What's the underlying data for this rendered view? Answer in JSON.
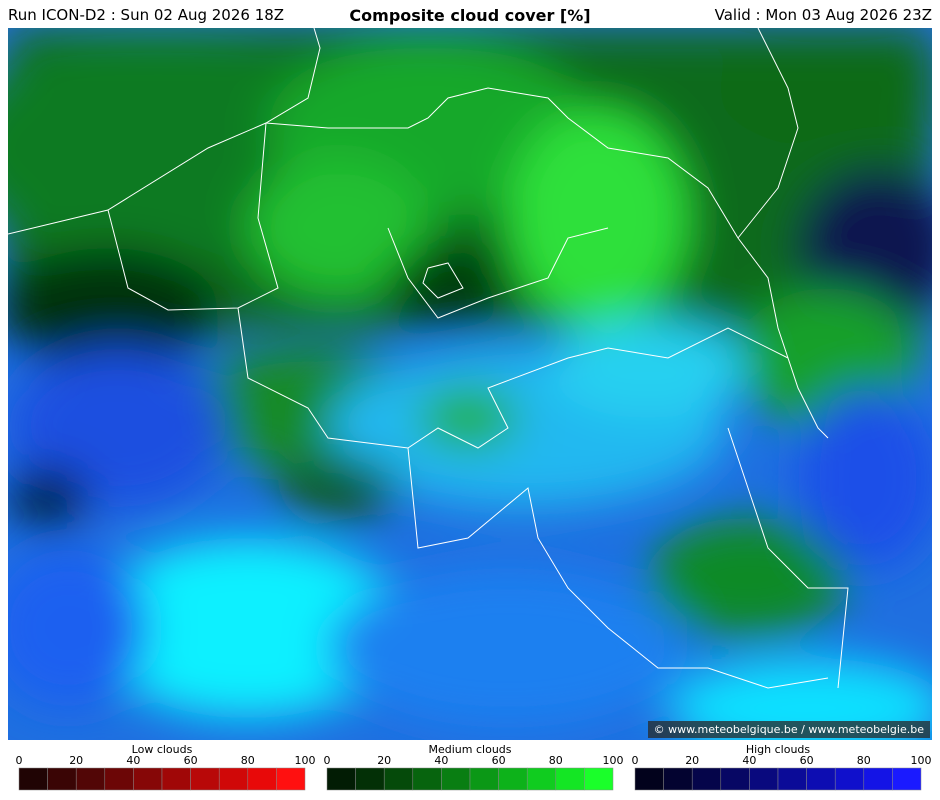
{
  "header": {
    "run": "Run ICON-D2 : Sun 02 Aug 2026 18Z",
    "title": "Composite cloud cover [%]",
    "valid": "Valid : Mon 03 Aug 2026 23Z"
  },
  "credit": "© www.meteobelgique.be / www.meteobelgie.be",
  "legends": [
    {
      "title": "Low clouds",
      "ticks": [
        0,
        20,
        40,
        60,
        80,
        100
      ],
      "colors": [
        "#200404",
        "#3a0505",
        "#520606",
        "#6c0606",
        "#860707",
        "#a00707",
        "#b80808",
        "#d00808",
        "#e80909",
        "#ff1010"
      ]
    },
    {
      "title": "Medium clouds",
      "ticks": [
        0,
        20,
        40,
        60,
        80,
        100
      ],
      "colors": [
        "#021c04",
        "#033006",
        "#054a0a",
        "#07640e",
        "#097e12",
        "#0b9816",
        "#0db21a",
        "#10cc1f",
        "#14e624",
        "#1aff2a"
      ]
    },
    {
      "title": "High clouds",
      "ticks": [
        0,
        20,
        40,
        60,
        80,
        100
      ],
      "colors": [
        "#02021c",
        "#030330",
        "#05054a",
        "#070764",
        "#09097e",
        "#0b0b98",
        "#0d0db2",
        "#1010cc",
        "#1414e6",
        "#1a1aff"
      ]
    }
  ]
}
